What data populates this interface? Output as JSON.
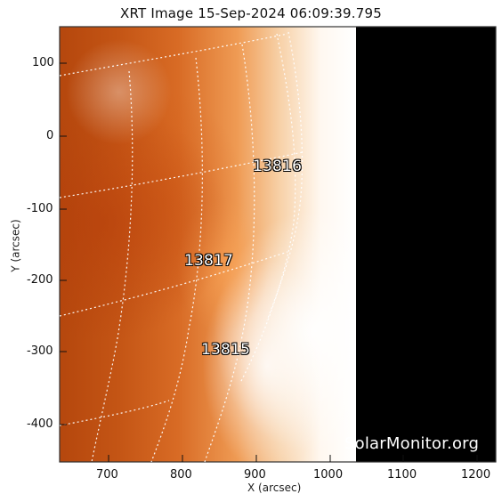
{
  "title": "XRT Image 15-Sep-2024 06:09:39.795",
  "axes": {
    "x_label": "X (arcsec)",
    "y_label": "Y (arcsec)",
    "x_ticks": [
      "700",
      "800",
      "900",
      "1000",
      "1100",
      "1200"
    ],
    "y_ticks": [
      "100",
      "0",
      "-100",
      "-200",
      "-300",
      "-400"
    ]
  },
  "active_regions": [
    {
      "id": "13816"
    },
    {
      "id": "13817"
    },
    {
      "id": "13815"
    }
  ],
  "watermark": "SolarMonitor.org",
  "colors": {
    "background": "#ffffff",
    "plot_off_disk": "#000000",
    "hot_orange": "#b5470d",
    "mid_orange": "#ef9b54",
    "limb_white": "#ffffff"
  }
}
